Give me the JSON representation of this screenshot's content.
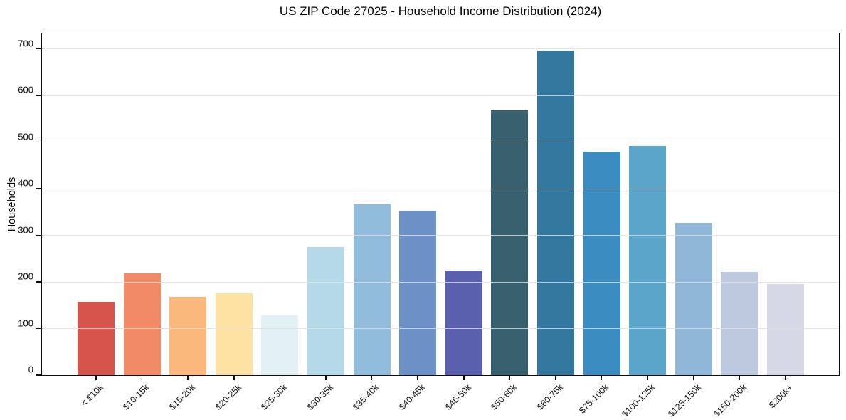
{
  "figure": {
    "background_color": "#ffffff",
    "text_color": "#000000",
    "grid_color": "#e0e0e0"
  },
  "chart_data": {
    "type": "bar",
    "title": "US ZIP Code 27025 - Household Income Distribution (2024)",
    "xlabel": "",
    "ylabel": "Households",
    "categories": [
      "< $10k",
      "$10-15k",
      "$15-20k",
      "$20-25k",
      "$25-30k",
      "$30-35k",
      "$35-40k",
      "$40-45k",
      "$45-50k",
      "$50-60k",
      "$60-75k",
      "$75-100k",
      "$100-125k",
      "$125-150k",
      "$150-200k",
      "$200k+"
    ],
    "values": [
      157,
      219,
      168,
      175,
      129,
      275,
      366,
      353,
      225,
      568,
      697,
      480,
      491,
      327,
      222,
      195
    ],
    "bar_colors": [
      "#d6544b",
      "#f28a68",
      "#fbb87d",
      "#fde2a3",
      "#e3f0f6",
      "#b5d9e9",
      "#92bcdb",
      "#6b91c6",
      "#5a5fae",
      "#38606f",
      "#33789f",
      "#3a8cc1",
      "#5ba4ca",
      "#90b7d8",
      "#bcc9de",
      "#d6d8e5"
    ],
    "y_ticks": [
      0,
      100,
      200,
      300,
      400,
      500,
      600,
      700
    ],
    "ylim": [
      0,
      733
    ],
    "grid": "horizontal",
    "legend": "none",
    "x_tick_rotation": 45
  }
}
